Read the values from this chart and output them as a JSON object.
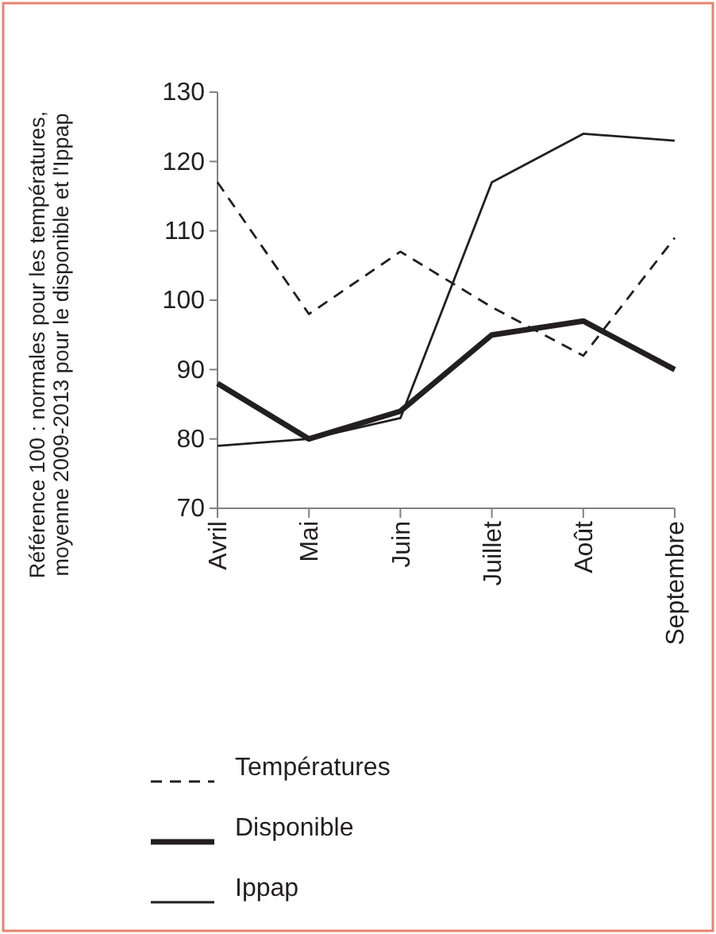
{
  "chart_data": {
    "type": "line",
    "ylabel": "Référence 100 : normales pour les températures,\nmoyenne 2009-2013 pour le disponible et l'Ippap",
    "categories": [
      "Avril",
      "Mai",
      "Juin",
      "Juillet",
      "Août",
      "Septembre"
    ],
    "series": [
      {
        "name": "Températures",
        "color": "#231f20",
        "line_style": "dashed",
        "values": [
          117,
          98,
          107,
          99,
          92,
          109
        ]
      },
      {
        "name": "Disponible",
        "color": "#231f20",
        "line_style": "solid",
        "values": [
          88,
          80,
          84,
          95,
          97,
          90
        ]
      },
      {
        "name": "Ippap",
        "color": "#231f20",
        "line_style": "solid",
        "values": [
          79,
          80,
          83,
          117,
          124,
          123
        ]
      }
    ],
    "ylim": [
      70,
      130
    ],
    "yticks": [
      70,
      80,
      90,
      100,
      110,
      120,
      130
    ],
    "grid": false,
    "legend": "bottom",
    "marker": "none"
  }
}
